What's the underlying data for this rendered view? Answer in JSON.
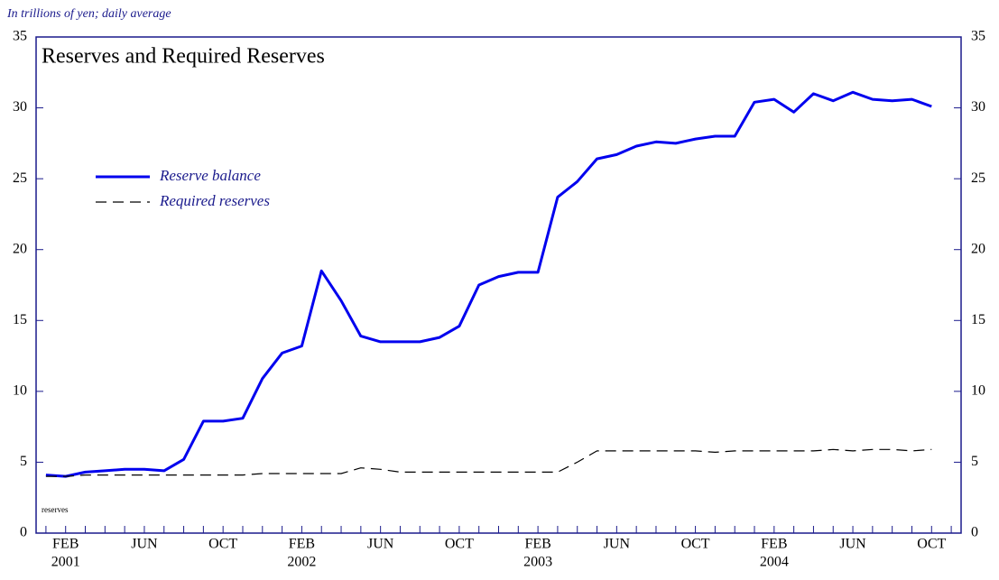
{
  "chart_data": {
    "type": "line",
    "title": "Reserves and Required Reserves",
    "subtitle": "In trillions of yen; daily average",
    "annotation": "reserves",
    "categories": [
      null,
      "FEB",
      null,
      null,
      null,
      "JUN",
      null,
      null,
      null,
      "OCT",
      null,
      null,
      null,
      "FEB",
      null,
      null,
      null,
      "JUN",
      null,
      null,
      null,
      "OCT",
      null,
      null,
      null,
      "FEB",
      null,
      null,
      null,
      "JUN",
      null,
      null,
      null,
      "OCT",
      null,
      null,
      null,
      "FEB",
      null,
      null,
      null,
      "JUN",
      null,
      null,
      null,
      "OCT",
      null
    ],
    "category_years": [
      null,
      "2001",
      null,
      null,
      null,
      null,
      null,
      null,
      null,
      null,
      null,
      null,
      null,
      "2002",
      null,
      null,
      null,
      null,
      null,
      null,
      null,
      null,
      null,
      null,
      null,
      "2003",
      null,
      null,
      null,
      null,
      null,
      null,
      null,
      null,
      null,
      null,
      null,
      "2004",
      null,
      null,
      null,
      null,
      null,
      null,
      null,
      null,
      null
    ],
    "series": [
      {
        "name": "Reserve balance",
        "color": "#0000ee",
        "dash": false,
        "values": [
          4.1,
          4.0,
          4.3,
          4.4,
          4.5,
          4.5,
          4.4,
          5.2,
          7.9,
          7.9,
          8.1,
          10.9,
          12.7,
          13.2,
          18.5,
          16.4,
          13.9,
          13.5,
          13.5,
          13.5,
          13.8,
          14.6,
          17.5,
          18.1,
          18.4,
          18.4,
          23.7,
          24.8,
          26.4,
          26.7,
          27.3,
          27.6,
          27.5,
          27.8,
          28.0,
          28.0,
          30.4,
          30.6,
          29.7,
          31.0,
          30.5,
          31.1,
          30.6,
          30.5,
          30.6,
          30.1,
          null
        ]
      },
      {
        "name": "Required reserves",
        "color": "#000000",
        "dash": true,
        "values": [
          4.0,
          4.0,
          4.1,
          4.1,
          4.1,
          4.1,
          4.1,
          4.1,
          4.1,
          4.1,
          4.1,
          4.2,
          4.2,
          4.2,
          4.2,
          4.2,
          4.6,
          4.5,
          4.3,
          4.3,
          4.3,
          4.3,
          4.3,
          4.3,
          4.3,
          4.3,
          4.3,
          5.0,
          5.8,
          5.8,
          5.8,
          5.8,
          5.8,
          5.8,
          5.7,
          5.8,
          5.8,
          5.8,
          5.8,
          5.8,
          5.9,
          5.8,
          5.9,
          5.9,
          5.8,
          5.9,
          null
        ]
      }
    ],
    "ylim": [
      0,
      35
    ],
    "yticks": [
      0,
      5,
      10,
      15,
      20,
      25,
      30,
      35
    ],
    "y2lim": [
      0,
      35
    ],
    "y2ticks": [
      0,
      5,
      10,
      15,
      20,
      25,
      30,
      35
    ]
  }
}
